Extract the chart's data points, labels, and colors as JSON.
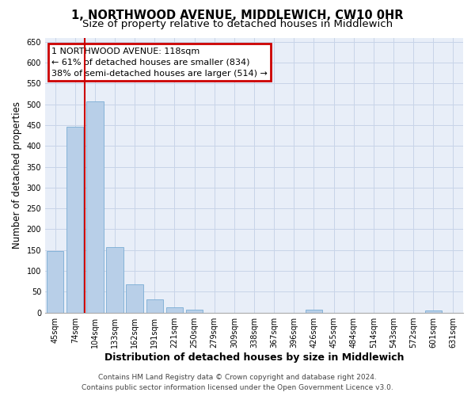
{
  "title": "1, NORTHWOOD AVENUE, MIDDLEWICH, CW10 0HR",
  "subtitle": "Size of property relative to detached houses in Middlewich",
  "xlabel": "Distribution of detached houses by size in Middlewich",
  "ylabel": "Number of detached properties",
  "footer_line1": "Contains HM Land Registry data © Crown copyright and database right 2024.",
  "footer_line2": "Contains public sector information licensed under the Open Government Licence v3.0.",
  "categories": [
    "45sqm",
    "74sqm",
    "104sqm",
    "133sqm",
    "162sqm",
    "191sqm",
    "221sqm",
    "250sqm",
    "279sqm",
    "309sqm",
    "338sqm",
    "367sqm",
    "396sqm",
    "426sqm",
    "455sqm",
    "484sqm",
    "514sqm",
    "543sqm",
    "572sqm",
    "601sqm",
    "631sqm"
  ],
  "values": [
    147,
    447,
    507,
    157,
    68,
    32,
    12,
    7,
    0,
    0,
    0,
    0,
    0,
    6,
    0,
    0,
    0,
    0,
    0,
    5,
    0
  ],
  "bar_color": "#b8cfe8",
  "bar_edge_color": "#7aacd4",
  "grid_color": "#c8d4e8",
  "background_color": "#e8eef8",
  "annotation_box_text": "1 NORTHWOOD AVENUE: 118sqm\n← 61% of detached houses are smaller (834)\n38% of semi-detached houses are larger (514) →",
  "annotation_box_color": "#cc0000",
  "vline_color": "#cc0000",
  "vline_x_index": 2,
  "ylim": [
    0,
    660
  ],
  "yticks": [
    0,
    50,
    100,
    150,
    200,
    250,
    300,
    350,
    400,
    450,
    500,
    550,
    600,
    650
  ],
  "title_fontsize": 10.5,
  "subtitle_fontsize": 9.5,
  "xlabel_fontsize": 9,
  "ylabel_fontsize": 8.5,
  "tick_fontsize": 7,
  "annotation_fontsize": 8,
  "footer_fontsize": 6.5
}
